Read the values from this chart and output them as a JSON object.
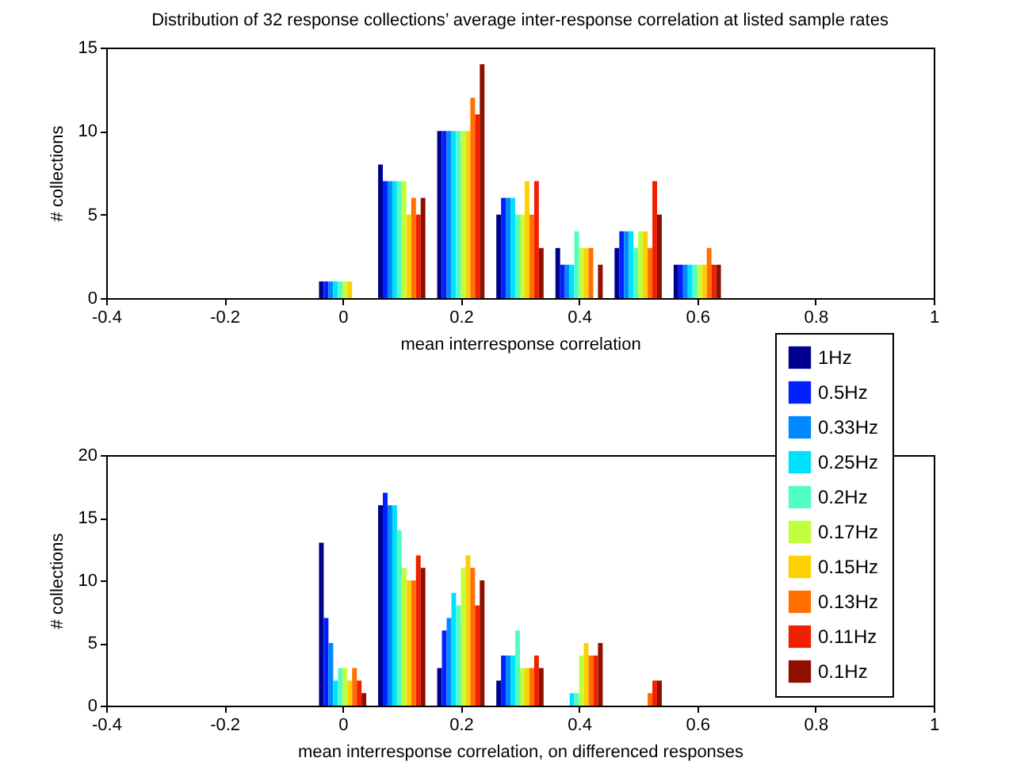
{
  "chart_data": [
    {
      "type": "bar",
      "title": "Distribution of 32 response collections’ average inter-response correlation at listed sample rates",
      "xlabel": "mean interresponse correlation",
      "ylabel": "# collections",
      "x": [
        0,
        0.1,
        0.2,
        0.3,
        0.4,
        0.5,
        0.6
      ],
      "xlim": [
        -0.4,
        1
      ],
      "xticks": [
        -0.4,
        -0.2,
        0,
        0.2,
        0.4,
        0.6,
        0.8,
        1
      ],
      "ylim": [
        0,
        15
      ],
      "yticks": [
        0,
        5,
        10,
        15
      ],
      "series": [
        {
          "color": "#00008f",
          "values": [
            1,
            8,
            10,
            5,
            3,
            3,
            2
          ]
        },
        {
          "color": "#0020ff",
          "values": [
            1,
            7,
            10,
            6,
            2,
            4,
            2
          ]
        },
        {
          "color": "#0088ff",
          "values": [
            1,
            7,
            10,
            6,
            2,
            4,
            2
          ]
        },
        {
          "color": "#00e0ff",
          "values": [
            1,
            7,
            10,
            6,
            2,
            4,
            2
          ]
        },
        {
          "color": "#50ffc0",
          "values": [
            1,
            7,
            10,
            5,
            4,
            3,
            2
          ]
        },
        {
          "color": "#c0ff40",
          "values": [
            1,
            7,
            10,
            5,
            3,
            4,
            2
          ]
        },
        {
          "color": "#ffd000",
          "values": [
            1,
            5,
            10,
            7,
            3,
            4,
            2
          ]
        },
        {
          "color": "#ff7000",
          "values": [
            0,
            6,
            12,
            5,
            3,
            3,
            3
          ]
        },
        {
          "color": "#f02000",
          "values": [
            0,
            5,
            11,
            7,
            0,
            7,
            2
          ]
        },
        {
          "color": "#901000",
          "values": [
            0,
            6,
            14,
            3,
            2,
            5,
            2
          ]
        }
      ]
    },
    {
      "type": "bar",
      "xlabel": "mean interresponse correlation, on differenced responses",
      "ylabel": "# collections",
      "x": [
        0,
        0.1,
        0.2,
        0.3,
        0.4,
        0.5
      ],
      "xlim": [
        -0.4,
        1
      ],
      "xticks": [
        -0.4,
        -0.2,
        0,
        0.2,
        0.4,
        0.6,
        0.8,
        1
      ],
      "ylim": [
        0,
        20
      ],
      "yticks": [
        0,
        5,
        10,
        15,
        20
      ],
      "legend": "top right",
      "series": [
        {
          "name": "1Hz",
          "color": "#00008f",
          "values": [
            13,
            16,
            3,
            2,
            0,
            0
          ]
        },
        {
          "name": "0.5Hz",
          "color": "#0020ff",
          "values": [
            7,
            17,
            6,
            4,
            0,
            0
          ]
        },
        {
          "name": "0.33Hz",
          "color": "#0088ff",
          "values": [
            5,
            16,
            7,
            4,
            0,
            0
          ]
        },
        {
          "name": "0.25Hz",
          "color": "#00e0ff",
          "values": [
            2,
            16,
            9,
            4,
            1,
            0
          ]
        },
        {
          "name": "0.2Hz",
          "color": "#50ffc0",
          "values": [
            3,
            14,
            8,
            6,
            1,
            0
          ]
        },
        {
          "name": "0.17Hz",
          "color": "#c0ff40",
          "values": [
            3,
            11,
            11,
            3,
            4,
            0
          ]
        },
        {
          "name": "0.15Hz",
          "color": "#ffd000",
          "values": [
            2,
            10,
            12,
            3,
            5,
            0
          ]
        },
        {
          "name": "0.13Hz",
          "color": "#ff7000",
          "values": [
            3,
            10,
            11,
            3,
            4,
            1
          ]
        },
        {
          "name": "0.11Hz",
          "color": "#f02000",
          "values": [
            2,
            12,
            8,
            4,
            4,
            2
          ]
        },
        {
          "name": "0.1Hz",
          "color": "#901000",
          "values": [
            1,
            11,
            10,
            3,
            5,
            2
          ]
        }
      ]
    }
  ]
}
